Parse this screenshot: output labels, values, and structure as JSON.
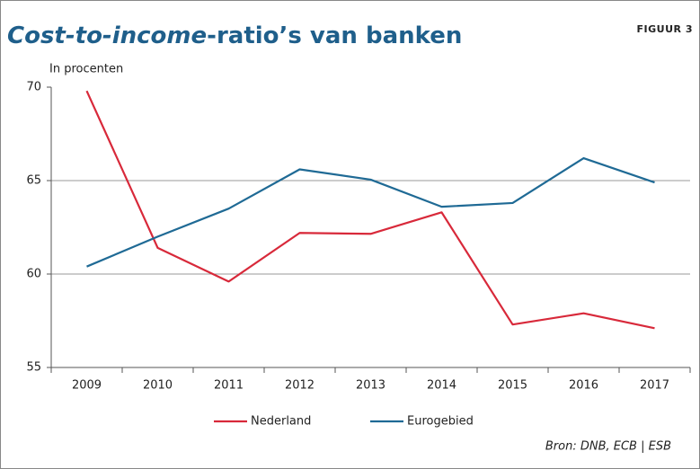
{
  "chart_data": {
    "type": "line",
    "title": [
      "Cost-to-income",
      "-ratio’s van banken"
    ],
    "figure_label": "FIGUUR 3",
    "subtitle": "In procenten",
    "source": "Bron: DNB, ECB | ESB",
    "categories": [
      "2009",
      "2010",
      "2011",
      "2012",
      "2013",
      "2014",
      "2015",
      "2016",
      "2017"
    ],
    "series": [
      {
        "name": "Nederland",
        "color": "#d8293a",
        "values": [
          69.8,
          61.4,
          59.6,
          62.2,
          62.15,
          63.3,
          57.3,
          57.9,
          57.1
        ]
      },
      {
        "name": "Eurogebied",
        "color": "#1f6a95",
        "values": [
          60.4,
          62.0,
          63.5,
          65.6,
          65.05,
          63.6,
          63.8,
          66.2,
          64.9
        ]
      }
    ],
    "ylim": [
      55,
      70
    ],
    "yticks": [
      55,
      60,
      65,
      70
    ],
    "grid": true
  }
}
